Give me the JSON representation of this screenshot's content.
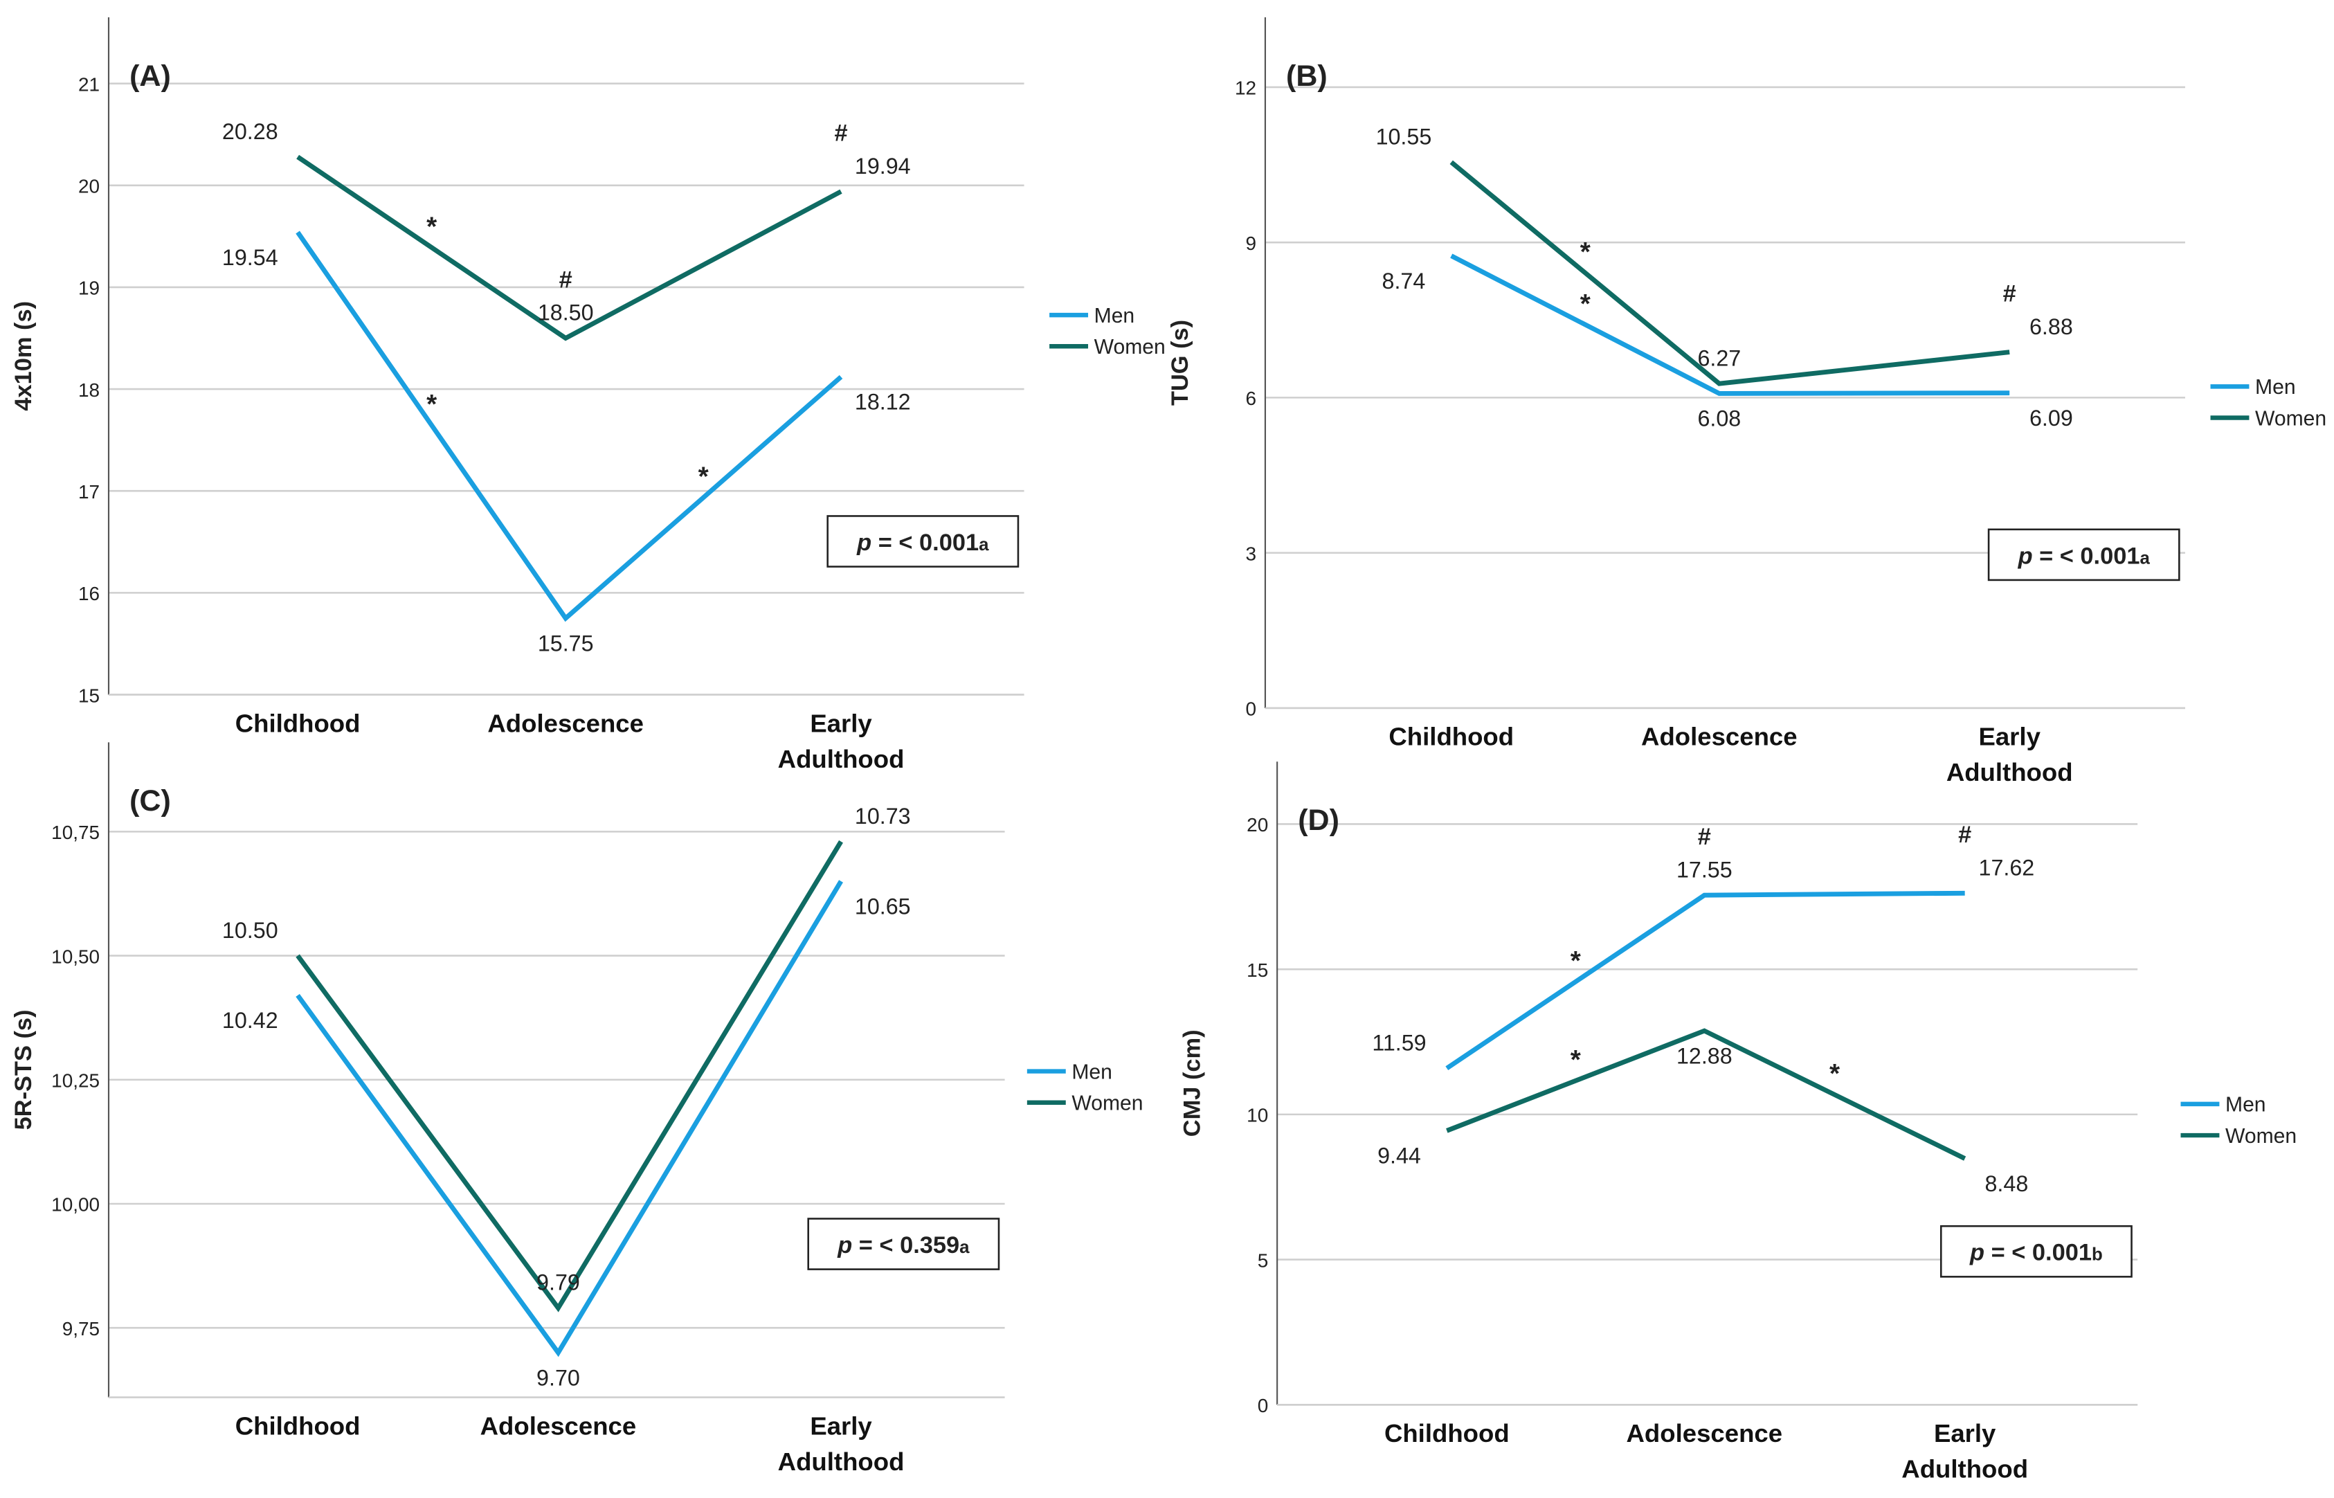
{
  "chart_data": [
    {
      "type": "line",
      "panel_label": "(A)",
      "y_label": "4x10m (s)",
      "categories": [
        "Childhood",
        "Adolescence",
        "Early Adulthood"
      ],
      "ylim": [
        15,
        21.65
      ],
      "yticks": [
        15,
        16,
        17,
        18,
        19,
        20,
        21
      ],
      "grid": true,
      "legend": "right",
      "series": [
        {
          "name": "Men",
          "color": "#1a9fe0",
          "values": [
            19.54,
            15.75,
            18.12
          ],
          "value_labels": [
            "19.54",
            "15.75",
            "18.12"
          ],
          "segment_marks": [
            "*",
            "*"
          ],
          "point_marks": [
            null,
            null,
            null
          ]
        },
        {
          "name": "Women",
          "color": "#0f6b63",
          "values": [
            20.28,
            18.5,
            19.94
          ],
          "value_labels": [
            "20.28",
            "18.50",
            "19.94"
          ],
          "segment_marks": [
            "*",
            null
          ],
          "point_marks": [
            null,
            "#",
            "#"
          ]
        }
      ],
      "p_value": {
        "symbol": "p",
        "text": " = < 0.001",
        "note": "a"
      }
    },
    {
      "type": "line",
      "panel_label": "(B)",
      "y_label": "TUG (s)",
      "categories": [
        "Childhood",
        "Adolescence",
        "Early Adulthood"
      ],
      "ylim": [
        0,
        13.35
      ],
      "yticks": [
        0,
        3,
        6,
        9,
        12
      ],
      "grid": true,
      "legend": "right",
      "series": [
        {
          "name": "Men",
          "color": "#1a9fe0",
          "values": [
            8.74,
            6.08,
            6.09
          ],
          "value_labels": [
            "8.74",
            "6.08",
            "6.09"
          ],
          "segment_marks": [
            "*",
            null
          ],
          "point_marks": [
            null,
            null,
            null
          ]
        },
        {
          "name": "Women",
          "color": "#0f6b63",
          "values": [
            10.55,
            6.27,
            6.88
          ],
          "value_labels": [
            "10.55",
            "6.27",
            "6.88"
          ],
          "segment_marks": [
            "*",
            null
          ],
          "point_marks": [
            null,
            null,
            "#"
          ]
        }
      ],
      "p_value": {
        "symbol": "p",
        "text": " = < 0.001",
        "note": "a"
      }
    },
    {
      "type": "line",
      "panel_label": "(C)",
      "y_label": "5R-STS (s)",
      "categories": [
        "Childhood",
        "Adolescence",
        "Early Adulthood"
      ],
      "ylim": [
        9.61,
        10.93
      ],
      "yticks": [
        {
          "value": 9.75,
          "label": "9,75"
        },
        {
          "value": 10,
          "label": "10,00"
        },
        {
          "value": 10.25,
          "label": "10,25"
        },
        {
          "value": 10.5,
          "label": "10,50"
        },
        {
          "value": 10.75,
          "label": "10,75"
        }
      ],
      "grid": true,
      "legend": "right",
      "series": [
        {
          "name": "Men",
          "color": "#1a9fe0",
          "values": [
            10.42,
            9.7,
            10.65
          ],
          "value_labels": [
            "10.42",
            "9.70",
            "10.65"
          ],
          "segment_marks": [
            null,
            null
          ],
          "point_marks": [
            null,
            null,
            null
          ]
        },
        {
          "name": "Women",
          "color": "#0f6b63",
          "values": [
            10.5,
            9.79,
            10.73
          ],
          "value_labels": [
            "10.50",
            "9.79",
            "10.73"
          ],
          "segment_marks": [
            null,
            null
          ],
          "point_marks": [
            null,
            null,
            null
          ]
        }
      ],
      "p_value": {
        "symbol": "p",
        "text": " = < 0.359",
        "note": "a"
      }
    },
    {
      "type": "line",
      "panel_label": "(D)",
      "y_label": "CMJ (cm)",
      "categories": [
        "Childhood",
        "Adolescence",
        "Early Adulthood"
      ],
      "ylim": [
        0,
        22.15
      ],
      "yticks": [
        0,
        5,
        10,
        15,
        20
      ],
      "grid": true,
      "legend": "right",
      "series": [
        {
          "name": "Men",
          "color": "#1a9fe0",
          "values": [
            11.59,
            17.55,
            17.62
          ],
          "value_labels": [
            "11.59",
            "17.55",
            "17.62"
          ],
          "segment_marks": [
            "*",
            null
          ],
          "point_marks": [
            null,
            "#",
            "#"
          ]
        },
        {
          "name": "Women",
          "color": "#0f6b63",
          "values": [
            9.44,
            12.88,
            8.48
          ],
          "value_labels": [
            "9.44",
            "12.88",
            "8.48"
          ],
          "segment_marks": [
            "*",
            "*"
          ],
          "point_marks": [
            null,
            null,
            null
          ]
        }
      ],
      "p_value": {
        "symbol": "p",
        "text": " = < 0.001",
        "note": "b"
      }
    }
  ]
}
